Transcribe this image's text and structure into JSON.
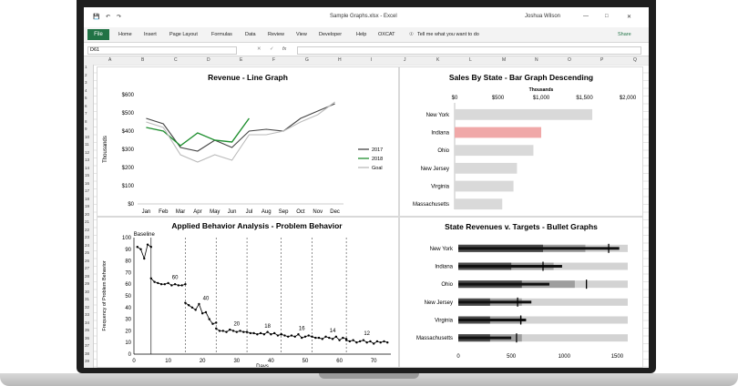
{
  "window": {
    "doc_title": "Sample Graphs.xlsx  -  Excel",
    "user": "Joshua Wilson",
    "autosave_icon": "save-icon"
  },
  "ribbon": {
    "file": "File",
    "tabs": [
      "Home",
      "Insert",
      "Page Layout",
      "Formulas",
      "Data",
      "Review",
      "View",
      "Developer",
      "Help",
      "OXCAT"
    ],
    "tell_me": "Tell me what you want to do",
    "share": "Share"
  },
  "formula_bar": {
    "name_box": "D61",
    "fx": "fx",
    "value": ""
  },
  "columns": [
    "A",
    "B",
    "C",
    "D",
    "E",
    "F",
    "G",
    "H",
    "I",
    "J",
    "K",
    "L",
    "M",
    "N",
    "O",
    "P",
    "Q"
  ],
  "rows": [
    "1",
    "2",
    "3",
    "4",
    "5",
    "6",
    "7",
    "8",
    "9",
    "10",
    "11",
    "12",
    "13",
    "14",
    "15",
    "16",
    "17",
    "18",
    "19",
    "20",
    "21",
    "22",
    "23",
    "24",
    "25",
    "26",
    "27",
    "28",
    "29",
    "30",
    "31",
    "32",
    "33",
    "34",
    "35",
    "36",
    "37",
    "38",
    "39",
    "40"
  ],
  "chart_data": [
    {
      "type": "line",
      "title": "Revenue - Line Graph",
      "ylabel": "Thousands",
      "ylim": [
        0,
        600
      ],
      "ytick_labels": [
        "$600",
        "$500",
        "$400",
        "$300",
        "$200",
        "$100",
        "$0"
      ],
      "categories": [
        "Jan",
        "Feb",
        "Mar",
        "Apr",
        "May",
        "Jun",
        "Jul",
        "Aug",
        "Sep",
        "Oct",
        "Nov",
        "Dec"
      ],
      "series": [
        {
          "name": "2017",
          "color": "#444444",
          "values": [
            470,
            440,
            310,
            290,
            350,
            310,
            400,
            410,
            400,
            470,
            510,
            550
          ]
        },
        {
          "name": "2018",
          "color": "#1f8f2f",
          "values": [
            420,
            400,
            320,
            390,
            350,
            340,
            470,
            null,
            null,
            null,
            null,
            null
          ]
        },
        {
          "name": "Goal",
          "color": "#bbbbbb",
          "values": [
            450,
            420,
            270,
            230,
            270,
            240,
            380,
            380,
            400,
            450,
            490,
            560
          ]
        }
      ],
      "legend": "right"
    },
    {
      "type": "bar",
      "title": "Sales By State - Bar Graph Descending",
      "xlabel": "Thousands",
      "xlim": [
        0,
        2000
      ],
      "xtick_labels": [
        "$0",
        "$500",
        "$1,000",
        "$1,500",
        "$2,000"
      ],
      "categories": [
        "New York",
        "Indiana",
        "Ohio",
        "New Jersey",
        "Virginia",
        "Massachusetts"
      ],
      "values": [
        1590,
        1000,
        910,
        720,
        680,
        550
      ],
      "highlight": "Indiana",
      "colors": {
        "bar": "#d9d9d9",
        "highlight": "#f0a8a8"
      }
    },
    {
      "type": "scatter",
      "title": "Applied Behavior Analysis - Problem Behavior",
      "xlabel": "Days",
      "ylabel": "Frequency of Problem Behavior",
      "xlim": [
        0,
        75
      ],
      "ylim": [
        0,
        100
      ],
      "xticks": [
        0,
        10,
        20,
        30,
        40,
        50,
        60,
        70
      ],
      "yticks": [
        0,
        10,
        20,
        30,
        40,
        50,
        60,
        70,
        80,
        90,
        100
      ],
      "annotations": [
        {
          "text": "Baseline",
          "x": 3,
          "y": 100
        },
        {
          "text": "60",
          "x": 12,
          "y": 63
        },
        {
          "text": "40",
          "x": 21,
          "y": 45
        },
        {
          "text": "20",
          "x": 30,
          "y": 23
        },
        {
          "text": "18",
          "x": 39,
          "y": 21
        },
        {
          "text": "16",
          "x": 49,
          "y": 19
        },
        {
          "text": "14",
          "x": 58,
          "y": 17
        },
        {
          "text": "12",
          "x": 68,
          "y": 15
        }
      ],
      "phase_lines": [
        5,
        15,
        24,
        33,
        43,
        52,
        62
      ],
      "series": [
        {
          "name": "",
          "x": [
            1,
            2,
            3,
            4,
            5
          ],
          "y": [
            92,
            90,
            82,
            94,
            92
          ]
        },
        {
          "name": "",
          "x": [
            5,
            6,
            7,
            8,
            9,
            10,
            11,
            12,
            13,
            14,
            15
          ],
          "y": [
            65,
            62,
            61,
            60,
            60,
            61,
            59,
            60,
            59,
            59,
            60
          ]
        },
        {
          "name": "",
          "x": [
            15,
            16,
            17,
            18,
            19,
            20,
            21,
            22,
            23,
            24
          ],
          "y": [
            44,
            42,
            40,
            38,
            43,
            35,
            36,
            30,
            26,
            27
          ]
        },
        {
          "name": "",
          "x": [
            24,
            25,
            26,
            27,
            28,
            29,
            30,
            31,
            32,
            33
          ],
          "y": [
            22,
            20,
            20,
            19,
            21,
            20,
            19,
            20,
            19,
            19
          ]
        },
        {
          "name": "",
          "x": [
            33,
            34,
            35,
            36,
            37,
            38,
            39,
            40,
            41,
            42,
            43
          ],
          "y": [
            19,
            18,
            18,
            17,
            18,
            17,
            19,
            17,
            18,
            16,
            17
          ]
        },
        {
          "name": "",
          "x": [
            43,
            44,
            45,
            46,
            47,
            48,
            49,
            50,
            51,
            52
          ],
          "y": [
            17,
            16,
            15,
            16,
            15,
            17,
            14,
            15,
            16,
            15
          ]
        },
        {
          "name": "",
          "x": [
            52,
            53,
            54,
            55,
            56,
            57,
            58,
            59,
            60,
            61,
            62
          ],
          "y": [
            15,
            14,
            14,
            13,
            15,
            14,
            13,
            15,
            12,
            14,
            13
          ]
        },
        {
          "name": "",
          "x": [
            62,
            63,
            64,
            65,
            66,
            67,
            68,
            69,
            70,
            71,
            72,
            73,
            74
          ],
          "y": [
            12,
            11,
            12,
            10,
            11,
            12,
            10,
            11,
            9,
            11,
            10,
            11,
            10
          ]
        }
      ],
      "color": "#000000"
    },
    {
      "type": "bar",
      "title": "State Revenues v. Targets - Bullet Graphs",
      "xlim": [
        0,
        1600
      ],
      "xtick_labels": [
        "0",
        "500",
        "1000",
        "1500"
      ],
      "categories": [
        "New York",
        "Indiana",
        "Ohio",
        "New Jersey",
        "Virginia",
        "Massachusetts"
      ],
      "values": [
        1520,
        980,
        860,
        690,
        640,
        500
      ],
      "targets": [
        1420,
        800,
        1210,
        560,
        590,
        550
      ],
      "ranges": [
        [
          800,
          1200,
          1600
        ],
        [
          500,
          900,
          1600
        ],
        [
          600,
          1100,
          1600
        ],
        [
          300,
          600,
          1600
        ],
        [
          300,
          600,
          1600
        ],
        [
          300,
          600,
          1600
        ]
      ],
      "colors": {
        "range_dark": "#4a4a4a",
        "range_mid": "#9e9e9e",
        "range_light": "#d3d3d3",
        "bar": "#111111",
        "target": "#000000"
      }
    }
  ]
}
